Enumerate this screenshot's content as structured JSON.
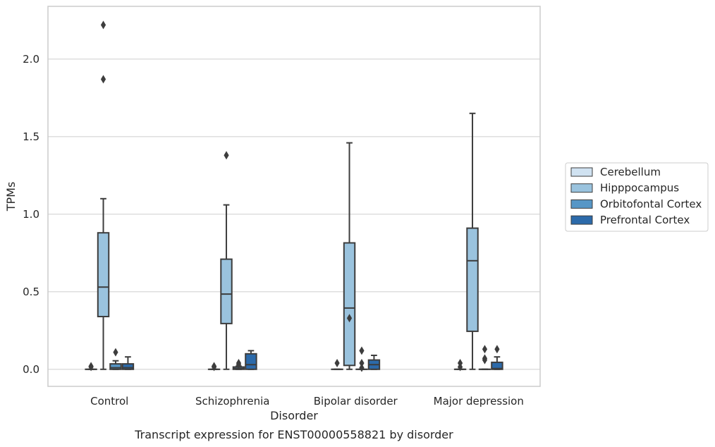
{
  "chart_data": {
    "type": "box",
    "title": "",
    "caption": "Transcript expression for ENST00000558821 by disorder",
    "xlabel": "Disorder",
    "ylabel": "TPMs",
    "ylim": [
      -0.11,
      2.34
    ],
    "yticks": [
      0.0,
      0.5,
      1.0,
      1.5,
      2.0
    ],
    "ytick_labels": [
      "0.0",
      "0.5",
      "1.0",
      "1.5",
      "2.0"
    ],
    "grid": "horizontal",
    "legend_position": "right",
    "categories": [
      "Control",
      "Schizophrenia",
      "Bipolar disorder",
      "Major depression"
    ],
    "series": [
      {
        "name": "Cerebellum",
        "color": "#d0e2f1",
        "boxes": [
          {
            "min": 0,
            "q1": 0,
            "median": 0,
            "q3": 0,
            "max": 0,
            "outliers": [
              0.02,
              0.015
            ]
          },
          {
            "min": 0,
            "q1": 0,
            "median": 0,
            "q3": 0,
            "max": 0,
            "outliers": [
              0.02,
              0.015
            ]
          },
          {
            "min": 0,
            "q1": 0,
            "median": 0,
            "q3": 0,
            "max": 0,
            "outliers": [
              0.04
            ]
          },
          {
            "min": 0,
            "q1": 0,
            "median": 0,
            "q3": 0,
            "max": 0,
            "outliers": [
              0.04,
              0.015
            ]
          }
        ]
      },
      {
        "name": "Hipppocampus",
        "color": "#9ac3de",
        "boxes": [
          {
            "min": 0,
            "q1": 0.34,
            "median": 0.53,
            "q3": 0.88,
            "max": 1.1,
            "outliers": [
              1.87,
              2.22
            ]
          },
          {
            "min": 0,
            "q1": 0.295,
            "median": 0.485,
            "q3": 0.71,
            "max": 1.06,
            "outliers": [
              1.38
            ]
          },
          {
            "min": 0,
            "q1": 0.025,
            "median": 0.395,
            "q3": 0.815,
            "max": 1.46,
            "outliers": [
              0.33
            ]
          },
          {
            "min": 0,
            "q1": 0.245,
            "median": 0.7,
            "q3": 0.91,
            "max": 1.65,
            "outliers": []
          }
        ]
      },
      {
        "name": "Orbitofontal Cortex",
        "color": "#5696c6",
        "boxes": [
          {
            "min": 0,
            "q1": 0,
            "median": 0.01,
            "q3": 0.035,
            "max": 0.055,
            "outliers": [
              0.11
            ]
          },
          {
            "min": 0,
            "q1": 0,
            "median": 0.005,
            "q3": 0.015,
            "max": 0.02,
            "outliers": [
              0.04,
              0.03
            ]
          },
          {
            "min": 0,
            "q1": 0,
            "median": 0,
            "q3": 0,
            "max": 0,
            "outliers": [
              0.12,
              0.04,
              0.01
            ]
          },
          {
            "min": 0,
            "q1": 0,
            "median": 0,
            "q3": 0,
            "max": 0,
            "outliers": [
              0.13,
              0.07,
              0.06
            ]
          }
        ]
      },
      {
        "name": "Prefrontal Cortex",
        "color": "#2c6aaa",
        "boxes": [
          {
            "min": 0,
            "q1": 0,
            "median": 0.01,
            "q3": 0.035,
            "max": 0.08,
            "outliers": []
          },
          {
            "min": 0,
            "q1": 0,
            "median": 0.03,
            "q3": 0.1,
            "max": 0.12,
            "outliers": []
          },
          {
            "min": 0,
            "q1": 0,
            "median": 0.03,
            "q3": 0.06,
            "max": 0.09,
            "outliers": []
          },
          {
            "min": 0,
            "q1": 0,
            "median": 0.005,
            "q3": 0.045,
            "max": 0.08,
            "outliers": [
              0.13
            ]
          }
        ]
      }
    ]
  }
}
